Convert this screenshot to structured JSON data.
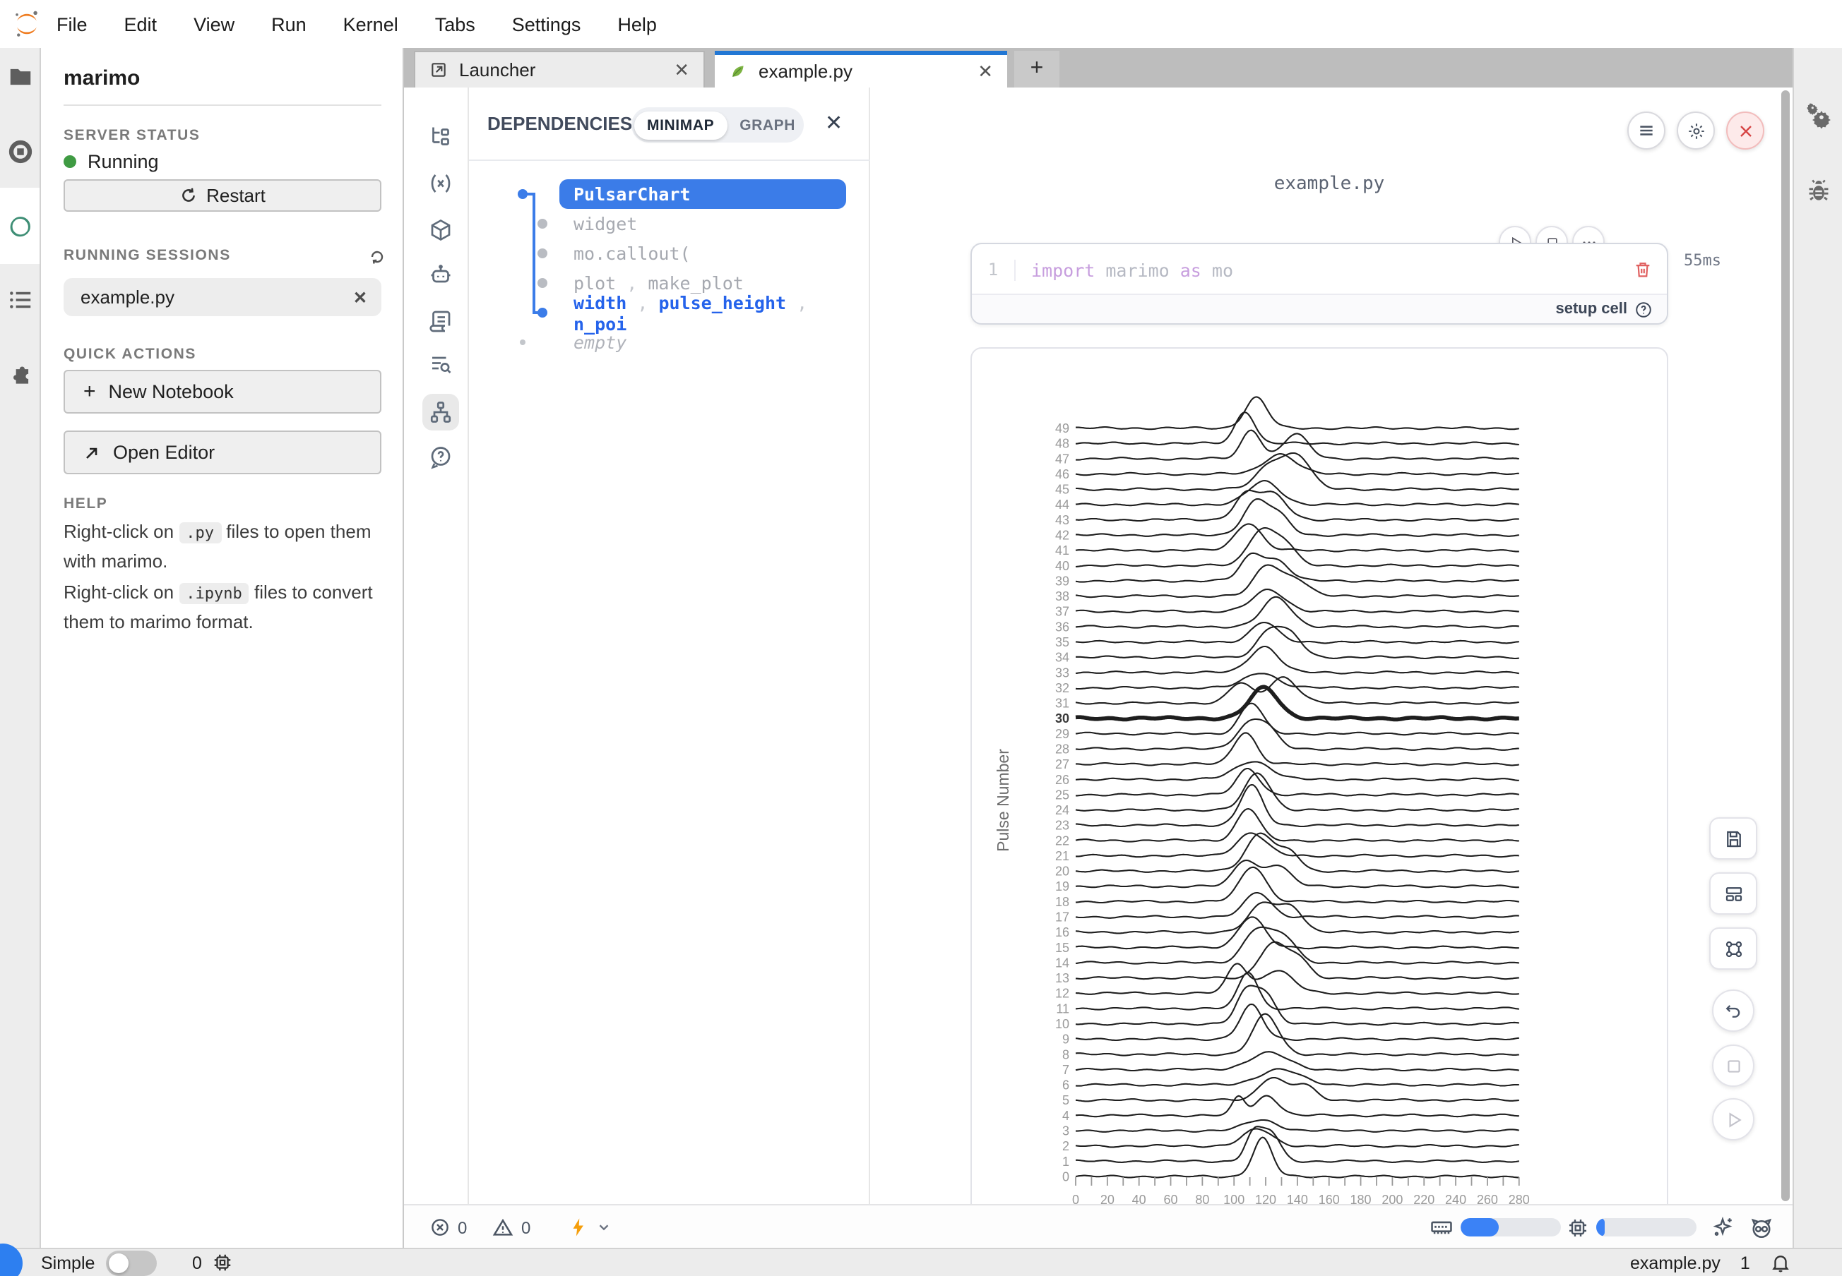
{
  "menu_bar": {
    "items": [
      "File",
      "Edit",
      "View",
      "Run",
      "Kernel",
      "Tabs",
      "Settings",
      "Help"
    ]
  },
  "left_dock": {
    "icons": [
      "folder-icon",
      "stop-circle-icon",
      "marimo-ring-icon",
      "running-list-icon",
      "extensions-puzzle-icon"
    ]
  },
  "right_dock": {
    "icons": [
      "property-inspector-gears-icon",
      "debugger-bug-icon"
    ]
  },
  "sidebar": {
    "title": "marimo",
    "server_status": {
      "heading": "SERVER STATUS",
      "status": "Running",
      "restart_label": "Restart"
    },
    "sessions": {
      "heading": "RUNNING SESSIONS",
      "items": [
        {
          "name": "example.py"
        }
      ]
    },
    "quick_actions": {
      "heading": "QUICK ACTIONS",
      "new_notebook_label": "New Notebook",
      "open_editor_label": "Open Editor"
    },
    "help": {
      "heading": "HELP",
      "lines": [
        {
          "prefix": "Right-click on ",
          "code": ".py",
          "suffix": " files to open them with marimo."
        },
        {
          "prefix": "Right-click on ",
          "code": ".ipynb",
          "suffix": " files to convert them to marimo format."
        }
      ]
    }
  },
  "tabs": {
    "items": [
      {
        "label": "Launcher",
        "icon": "launcher-icon",
        "active": false
      },
      {
        "label": "example.py",
        "icon": "leaf-icon",
        "active": true
      }
    ],
    "new_tab_label": "+"
  },
  "dependencies": {
    "title": "DEPENDENCIES",
    "toggle": {
      "options": [
        "MINIMAP",
        "GRAPH"
      ],
      "active": "MINIMAP"
    },
    "tree": [
      {
        "style": "selected",
        "segments": [
          "PulsarChart"
        ]
      },
      {
        "style": "plain",
        "segments": [
          "widget"
        ]
      },
      {
        "style": "plain",
        "segments": [
          "mo.callout("
        ]
      },
      {
        "style": "plain",
        "segments": [
          "plot",
          "make_plot"
        ]
      },
      {
        "style": "emphasis",
        "segments": [
          "width",
          "pulse_height",
          "n_poi"
        ]
      },
      {
        "style": "empty",
        "segments": [
          "empty"
        ]
      }
    ]
  },
  "notebook": {
    "filename": "example.py",
    "cell": {
      "line_number": "1",
      "code_tokens": [
        {
          "text": "import",
          "type": "keyword"
        },
        {
          "text": " marimo ",
          "type": "plain"
        },
        {
          "text": "as",
          "type": "keyword"
        },
        {
          "text": " mo",
          "type": "plain"
        }
      ],
      "runtime": "55ms",
      "footer_label": "setup cell"
    },
    "status_bar": {
      "errors": "0",
      "warnings": "0",
      "memory_pct": 38,
      "cpu_pct": 9
    }
  },
  "chart_data": {
    "type": "line",
    "subtype": "ridgeline-pulsar",
    "title": "",
    "xlabel": "",
    "ylabel": "Pulse Number",
    "x_range": [
      0,
      280
    ],
    "x_tick_step_minor": 10,
    "x_tick_labels": [
      "0",
      "20",
      "40",
      "60",
      "80",
      "100",
      "120",
      "140",
      "160",
      "180",
      "200",
      "220",
      "240",
      "260",
      "280"
    ],
    "y_tick_labels_every_pulse": true,
    "bold_pulse": 30,
    "grid": false,
    "legend": false,
    "series_note": "each series: p = pulse number (row baseline), peaks_csa = list of [center, sigma, amplitude-in-row-units] gaussians",
    "series": [
      {
        "p": 0,
        "peaks_csa": [
          [
            118,
            6,
            2.5
          ]
        ]
      },
      {
        "p": 1,
        "peaks_csa": [
          [
            112,
            5,
            1.7
          ],
          [
            123,
            6,
            1.9
          ]
        ]
      },
      {
        "p": 2,
        "peaks_csa": [
          [
            115,
            9,
            1.1
          ]
        ]
      },
      {
        "p": 3,
        "peaks_csa": [
          [
            117,
            10,
            0.7
          ]
        ]
      },
      {
        "p": 4,
        "peaks_csa": [
          [
            103,
            4,
            1.2
          ],
          [
            121,
            7,
            1.3
          ]
        ]
      },
      {
        "p": 5,
        "peaks_csa": [
          [
            124,
            8,
            1.5
          ],
          [
            144,
            7,
            1.0
          ]
        ]
      },
      {
        "p": 6,
        "peaks_csa": [
          [
            129,
            13,
            1.0
          ]
        ]
      },
      {
        "p": 7,
        "peaks_csa": [
          [
            122,
            12,
            1.1
          ]
        ]
      },
      {
        "p": 8,
        "peaks_csa": [
          [
            120,
            8,
            2.6
          ]
        ]
      },
      {
        "p": 9,
        "peaks_csa": [
          [
            111,
            7,
            2.2
          ]
        ]
      },
      {
        "p": 10,
        "peaks_csa": [
          [
            107,
            6,
            1.8
          ],
          [
            119,
            7,
            2.0
          ]
        ]
      },
      {
        "p": 11,
        "peaks_csa": [
          [
            109,
            6,
            2.4
          ]
        ]
      },
      {
        "p": 12,
        "peaks_csa": [
          [
            102,
            6,
            1.9
          ],
          [
            127,
            10,
            1.5
          ]
        ]
      },
      {
        "p": 13,
        "peaks_csa": [
          [
            124,
            8,
            2.2
          ],
          [
            140,
            7,
            1.3
          ]
        ]
      },
      {
        "p": 14,
        "peaks_csa": [
          [
            114,
            8,
            2.1
          ],
          [
            131,
            8,
            1.7
          ]
        ]
      },
      {
        "p": 15,
        "peaks_csa": [
          [
            111,
            8,
            2.0
          ]
        ]
      },
      {
        "p": 16,
        "peaks_csa": [
          [
            119,
            9,
            1.9
          ],
          [
            137,
            7,
            1.5
          ]
        ]
      },
      {
        "p": 17,
        "peaks_csa": [
          [
            115,
            8,
            1.6
          ]
        ]
      },
      {
        "p": 18,
        "peaks_csa": [
          [
            112,
            8,
            2.3
          ]
        ]
      },
      {
        "p": 19,
        "peaks_csa": [
          [
            107,
            7,
            1.7
          ],
          [
            127,
            8,
            1.4
          ]
        ]
      },
      {
        "p": 20,
        "peaks_csa": [
          [
            117,
            9,
            2.5
          ],
          [
            136,
            6,
            1.1
          ]
        ]
      },
      {
        "p": 21,
        "peaks_csa": [
          [
            111,
            9,
            1.5
          ]
        ]
      },
      {
        "p": 22,
        "peaks_csa": [
          [
            109,
            7,
            2.1
          ]
        ]
      },
      {
        "p": 23,
        "peaks_csa": [
          [
            111,
            7,
            2.6
          ]
        ]
      },
      {
        "p": 24,
        "peaks_csa": [
          [
            115,
            8,
            2.4
          ]
        ]
      },
      {
        "p": 25,
        "peaks_csa": [
          [
            109,
            7,
            1.7
          ]
        ]
      },
      {
        "p": 26,
        "peaks_csa": [
          [
            112,
            11,
            1.2
          ]
        ]
      },
      {
        "p": 27,
        "peaks_csa": [
          [
            107,
            7,
            2.1
          ]
        ]
      },
      {
        "p": 28,
        "peaks_csa": [
          [
            109,
            8,
            1.5
          ],
          [
            121,
            7,
            1.2
          ]
        ]
      },
      {
        "p": 29,
        "peaks_csa": [
          [
            111,
            7,
            2.0
          ]
        ]
      },
      {
        "p": 30,
        "peaks_csa": [
          [
            119,
            9,
            2.0
          ]
        ]
      },
      {
        "p": 31,
        "peaks_csa": [
          [
            104,
            7,
            1.3
          ],
          [
            131,
            9,
            1.7
          ]
        ]
      },
      {
        "p": 32,
        "peaks_csa": [
          [
            117,
            10,
            1.0
          ]
        ]
      },
      {
        "p": 33,
        "peaks_csa": [
          [
            119,
            9,
            1.7
          ]
        ]
      },
      {
        "p": 34,
        "peaks_csa": [
          [
            123,
            8,
            1.8
          ],
          [
            137,
            7,
            1.2
          ]
        ]
      },
      {
        "p": 35,
        "peaks_csa": [
          [
            119,
            8,
            1.3
          ]
        ]
      },
      {
        "p": 36,
        "peaks_csa": [
          [
            127,
            9,
            1.9
          ]
        ]
      },
      {
        "p": 37,
        "peaks_csa": [
          [
            122,
            10,
            1.4
          ]
        ]
      },
      {
        "p": 38,
        "peaks_csa": [
          [
            121,
            8,
            2.0
          ],
          [
            139,
            8,
            1.1
          ]
        ]
      },
      {
        "p": 39,
        "peaks_csa": [
          [
            111,
            7,
            1.6
          ],
          [
            127,
            8,
            1.3
          ]
        ]
      },
      {
        "p": 40,
        "peaks_csa": [
          [
            117,
            8,
            2.3
          ],
          [
            132,
            7,
            1.4
          ]
        ]
      },
      {
        "p": 41,
        "peaks_csa": [
          [
            109,
            8,
            1.8
          ]
        ]
      },
      {
        "p": 42,
        "peaks_csa": [
          [
            114,
            8,
            2.2
          ],
          [
            129,
            7,
            1.1
          ]
        ]
      },
      {
        "p": 43,
        "peaks_csa": [
          [
            107,
            7,
            1.5
          ],
          [
            124,
            9,
            1.7
          ]
        ]
      },
      {
        "p": 44,
        "peaks_csa": [
          [
            119,
            10,
            1.5
          ]
        ]
      },
      {
        "p": 45,
        "peaks_csa": [
          [
            124,
            9,
            1.7
          ],
          [
            141,
            8,
            2.0
          ]
        ]
      },
      {
        "p": 46,
        "peaks_csa": [
          [
            129,
            10,
            1.3
          ]
        ]
      },
      {
        "p": 47,
        "peaks_csa": [
          [
            111,
            6,
            1.9
          ],
          [
            139,
            8,
            1.6
          ]
        ]
      },
      {
        "p": 48,
        "peaks_csa": [
          [
            107,
            6,
            2.1
          ]
        ]
      },
      {
        "p": 49,
        "peaks_csa": [
          [
            114,
            7,
            2.0
          ]
        ]
      }
    ]
  },
  "status_bar": {
    "mode_label": "Simple",
    "kernel_busy_count": "0",
    "current_file": "example.py",
    "notification_count": "1"
  },
  "colors": {
    "accent_blue": "#2277d4",
    "node_blue": "#3b7ce8",
    "emphasis_blue": "#2563eb",
    "running_green": "#3f9b43",
    "warning_orange": "#f59e0b",
    "danger_red": "#d64545",
    "meter_blue": "#3b82f6"
  }
}
